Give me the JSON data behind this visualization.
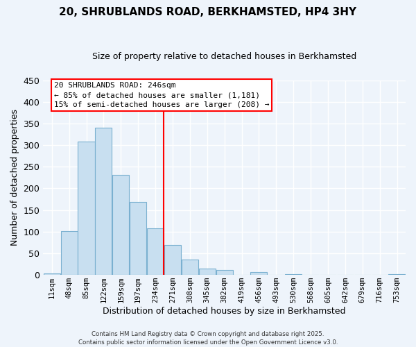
{
  "title1": "20, SHRUBLANDS ROAD, BERKHAMSTED, HP4 3HY",
  "title2": "Size of property relative to detached houses in Berkhamsted",
  "xlabel": "Distribution of detached houses by size in Berkhamsted",
  "ylabel": "Number of detached properties",
  "bin_labels": [
    "11sqm",
    "48sqm",
    "85sqm",
    "122sqm",
    "159sqm",
    "197sqm",
    "234sqm",
    "271sqm",
    "308sqm",
    "345sqm",
    "382sqm",
    "419sqm",
    "456sqm",
    "493sqm",
    "530sqm",
    "568sqm",
    "605sqm",
    "642sqm",
    "679sqm",
    "716sqm",
    "753sqm"
  ],
  "bar_values": [
    3,
    101,
    308,
    341,
    231,
    168,
    107,
    70,
    35,
    14,
    12,
    0,
    6,
    0,
    2,
    0,
    0,
    0,
    0,
    0,
    2
  ],
  "bar_color": "#c8dff0",
  "bar_edge_color": "#7ab0d0",
  "vline_x_index": 6,
  "vline_color": "red",
  "ylim": [
    0,
    450
  ],
  "yticks": [
    0,
    50,
    100,
    150,
    200,
    250,
    300,
    350,
    400,
    450
  ],
  "annotation_title": "20 SHRUBLANDS ROAD: 246sqm",
  "annotation_line1": "← 85% of detached houses are smaller (1,181)",
  "annotation_line2": "15% of semi-detached houses are larger (208) →",
  "annotation_box_color": "red",
  "footer1": "Contains HM Land Registry data © Crown copyright and database right 2025.",
  "footer2": "Contains public sector information licensed under the Open Government Licence v3.0.",
  "bg_color": "#eef4fb",
  "grid_color": "#ffffff",
  "title1_fontsize": 11,
  "title2_fontsize": 9
}
